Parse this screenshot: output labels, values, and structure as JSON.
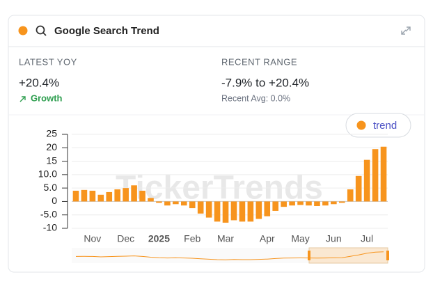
{
  "header": {
    "title": "Google Search Trend"
  },
  "stats": [
    {
      "label": "LATEST YOY",
      "value": "+20.4%",
      "note": "Growth"
    },
    {
      "label": "RECENT RANGE",
      "value": "-7.9% to +20.4%",
      "note": "Recent Avg: 0.0%"
    }
  ],
  "chart_data": {
    "type": "bar",
    "watermark": "TickerTrends",
    "categories": [
      null,
      null,
      "Nov",
      null,
      null,
      null,
      "Dec",
      null,
      null,
      null,
      "2025",
      null,
      null,
      null,
      "Feb",
      null,
      null,
      null,
      "Mar",
      null,
      null,
      null,
      null,
      "Apr",
      null,
      null,
      null,
      "May",
      null,
      null,
      null,
      "Jun",
      null,
      null,
      null,
      "Jul",
      null,
      null
    ],
    "series": [
      {
        "name": "trend",
        "color": "#f7941d",
        "values": [
          4,
          4.3,
          4,
          2.5,
          3.5,
          4.5,
          5,
          6,
          4,
          1.3,
          -0.5,
          -1.5,
          -1,
          -1.5,
          -2.5,
          -4.5,
          -6,
          -7.5,
          -7.9,
          -7,
          -7.5,
          -7.5,
          -6.5,
          -5.5,
          -3.5,
          -2,
          -1.5,
          -1.3,
          -1.5,
          -1.7,
          -1.5,
          -1,
          -0.5,
          4.5,
          9.5,
          15.5,
          19.5,
          20.4
        ]
      }
    ],
    "ylim": [
      -10,
      25
    ],
    "yticks": [
      -10,
      {
        "value": -5,
        "label": "-5.0"
      },
      0,
      {
        "value": 5,
        "label": "5.0"
      },
      {
        "value": 10,
        "label": "10.0"
      },
      15,
      20,
      25
    ],
    "grid": true
  }
}
